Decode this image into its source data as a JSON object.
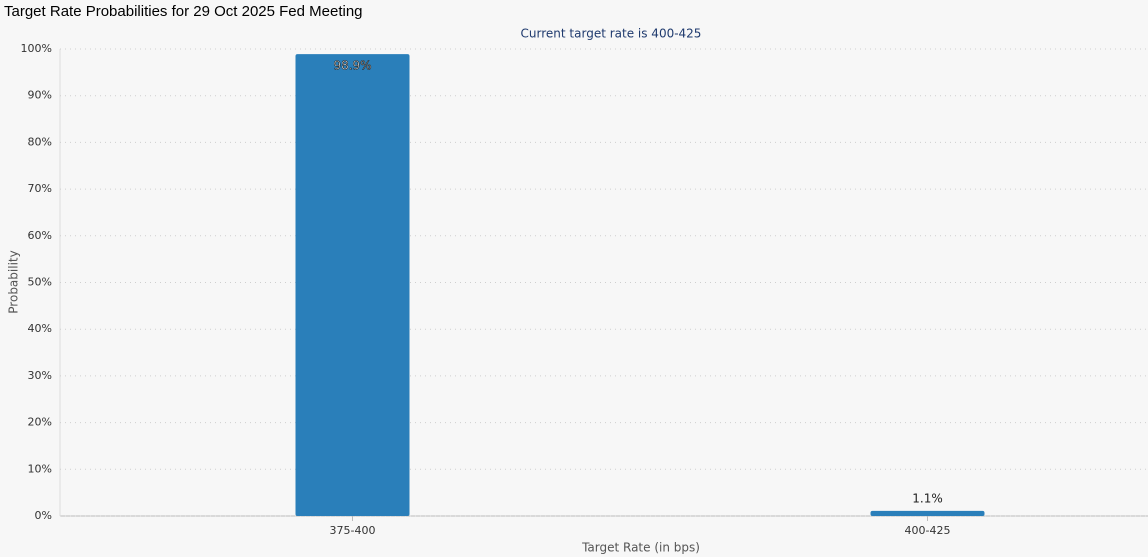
{
  "chart_data": {
    "type": "bar",
    "title": "Target Rate Probabilities for 29 Oct 2025 Fed Meeting",
    "subtitle": "Current target rate is 400-425",
    "x_label": "Target Rate (in bps)",
    "y_label": "Probability",
    "categories": [
      "375-400",
      "400-425"
    ],
    "values": [
      98.9,
      1.1
    ],
    "value_labels": [
      "98.9%",
      "1.1%"
    ],
    "color": "#2a7fba",
    "ylim": [
      0,
      100
    ],
    "yticks": [
      {
        "value": 0,
        "label": "0%"
      },
      {
        "value": 10,
        "label": "10%"
      },
      {
        "value": 20,
        "label": "20%"
      },
      {
        "value": 30,
        "label": "30%"
      },
      {
        "value": 40,
        "label": "40%"
      },
      {
        "value": 50,
        "label": "50%"
      },
      {
        "value": 60,
        "label": "60%"
      },
      {
        "value": 70,
        "label": "70%"
      },
      {
        "value": 80,
        "label": "80%"
      },
      {
        "value": 90,
        "label": "90%"
      },
      {
        "value": 100,
        "label": "100%"
      }
    ],
    "grid": true
  }
}
